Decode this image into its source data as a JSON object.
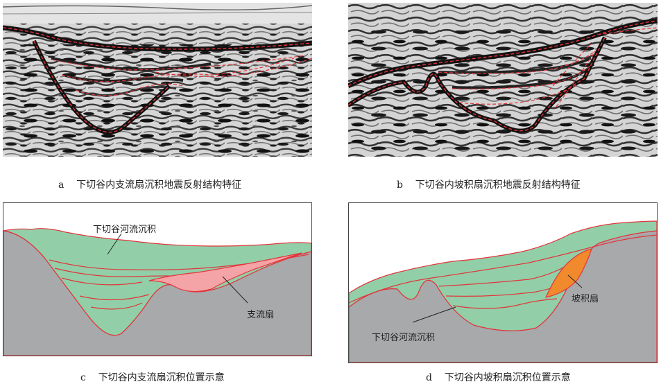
{
  "panels": {
    "a": {
      "letter": "a",
      "caption": "下切谷内支流扇沉积地震反射结构特征"
    },
    "b": {
      "letter": "b",
      "caption": "下切谷内坡积扇沉积地震反射结构特征"
    },
    "c": {
      "letter": "c",
      "caption": "下切谷内支流扇沉积位置示意",
      "labels": {
        "river_deposit": "下切谷河流沉积",
        "tributary_fan": "支流扇"
      }
    },
    "d": {
      "letter": "d",
      "caption": "下切谷内坡积扇沉积位置示意",
      "labels": {
        "river_deposit": "下切谷河流沉积",
        "slope_fan": "坡积扇"
      }
    }
  },
  "colors": {
    "bedrock": "#a7a9ab",
    "valley_fill": "#92cfa8",
    "tributary_fan": "#f4a3a6",
    "slope_fan": "#f08a2c",
    "horizon_line": "#e2343b",
    "seismic_bg": "#d8d8d8",
    "seismic_reflector": "#111111"
  }
}
